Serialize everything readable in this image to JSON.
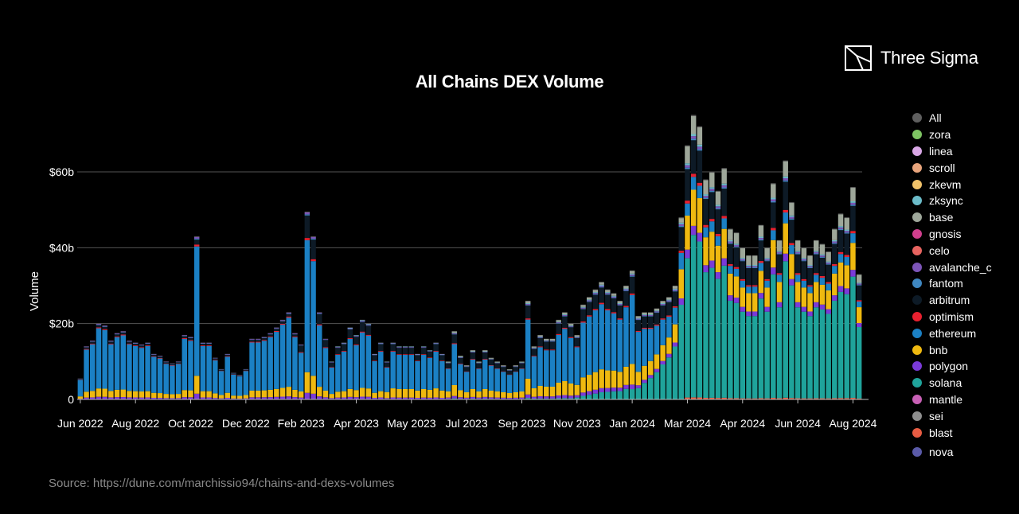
{
  "brand": {
    "name": "Three Sigma",
    "logo": "three-sigma-logo"
  },
  "title": "All Chains DEX Volume",
  "source": "Source: https://dune.com/marchissio94/chains-and-dexs-volumes",
  "chart_data": {
    "type": "bar",
    "stacked": true,
    "title": "All Chains DEX Volume",
    "ylabel": "Volume",
    "xlabel": "",
    "unit": "billion USD",
    "ylim": [
      0,
      75
    ],
    "y_ticks": [
      0,
      20,
      40,
      60
    ],
    "y_tick_labels": [
      "0",
      "$20b",
      "$40b",
      "$60b"
    ],
    "x_tick_labels": [
      "Jun 2022",
      "Aug 2022",
      "Oct 2022",
      "Dec 2022",
      "Feb 2023",
      "Apr 2023",
      "May 2023",
      "Jul 2023",
      "Sep 2023",
      "Nov 2023",
      "Jan 2024",
      "Mar 2024",
      "Apr 2024",
      "Jun 2024",
      "Aug 2024"
    ],
    "x_tick_bar_index": [
      0,
      9,
      18,
      27,
      36,
      45,
      54,
      63,
      72,
      81,
      90,
      99,
      108,
      117,
      126
    ],
    "grid": true,
    "legend_position": "right",
    "bar_totals": [
      5.5,
      14,
      15.5,
      20,
      19.5,
      15.5,
      17.5,
      18,
      15.5,
      15,
      14.5,
      15,
      12,
      11.5,
      10,
      9.5,
      10,
      17,
      16.5,
      43,
      15,
      15,
      11,
      8,
      12,
      7,
      6.5,
      8,
      16,
      16,
      16.5,
      17.5,
      19,
      21,
      23,
      17.5,
      14.5,
      49.5,
      43,
      23,
      16,
      10,
      14,
      15,
      19,
      17,
      21,
      20,
      12,
      15,
      10,
      15,
      14,
      14,
      14,
      12,
      14,
      13,
      15,
      12,
      10,
      18,
      11.5,
      9,
      13,
      10,
      13,
      11,
      10,
      9,
      8,
      9,
      10,
      26,
      14,
      17,
      16,
      16,
      21,
      23,
      20,
      17,
      25,
      27,
      29,
      31,
      29,
      28,
      26,
      30,
      34,
      22,
      23,
      23,
      24,
      26,
      27,
      30,
      48,
      67,
      75,
      72,
      58,
      60,
      55,
      61,
      45,
      44,
      40,
      38,
      38,
      46,
      40,
      57,
      42,
      63,
      52,
      42,
      40,
      38,
      42,
      41,
      39,
      45,
      49,
      48,
      56,
      33
    ]
  },
  "legend": [
    {
      "label": "All",
      "color": "#5f5f5f"
    },
    {
      "label": "zora",
      "color": "#7ec463"
    },
    {
      "label": "linea",
      "color": "#d9a7e6"
    },
    {
      "label": "scroll",
      "color": "#e8a47c"
    },
    {
      "label": "zkevm",
      "color": "#f0c26a"
    },
    {
      "label": "zksync",
      "color": "#6cbcc9"
    },
    {
      "label": "base",
      "color": "#9ea79a"
    },
    {
      "label": "gnosis",
      "color": "#d03f8e"
    },
    {
      "label": "celo",
      "color": "#e76460"
    },
    {
      "label": "avalanche_c",
      "color": "#7d55b8"
    },
    {
      "label": "fantom",
      "color": "#3f87c1"
    },
    {
      "label": "arbitrum",
      "color": "#0d1a26"
    },
    {
      "label": "optimism",
      "color": "#e8202f"
    },
    {
      "label": "ethereum",
      "color": "#1b80c4"
    },
    {
      "label": "bnb",
      "color": "#efb910"
    },
    {
      "label": "polygon",
      "color": "#7a3ad8"
    },
    {
      "label": "solana",
      "color": "#1fa39b"
    },
    {
      "label": "mantle",
      "color": "#c860b5"
    },
    {
      "label": "sei",
      "color": "#8e8e8e"
    },
    {
      "label": "blast",
      "color": "#e75c43"
    },
    {
      "label": "nova",
      "color": "#5a5aa8"
    }
  ],
  "colors": {
    "background": "#000000",
    "grid": "#555555",
    "axis": "#bbbbbb"
  }
}
